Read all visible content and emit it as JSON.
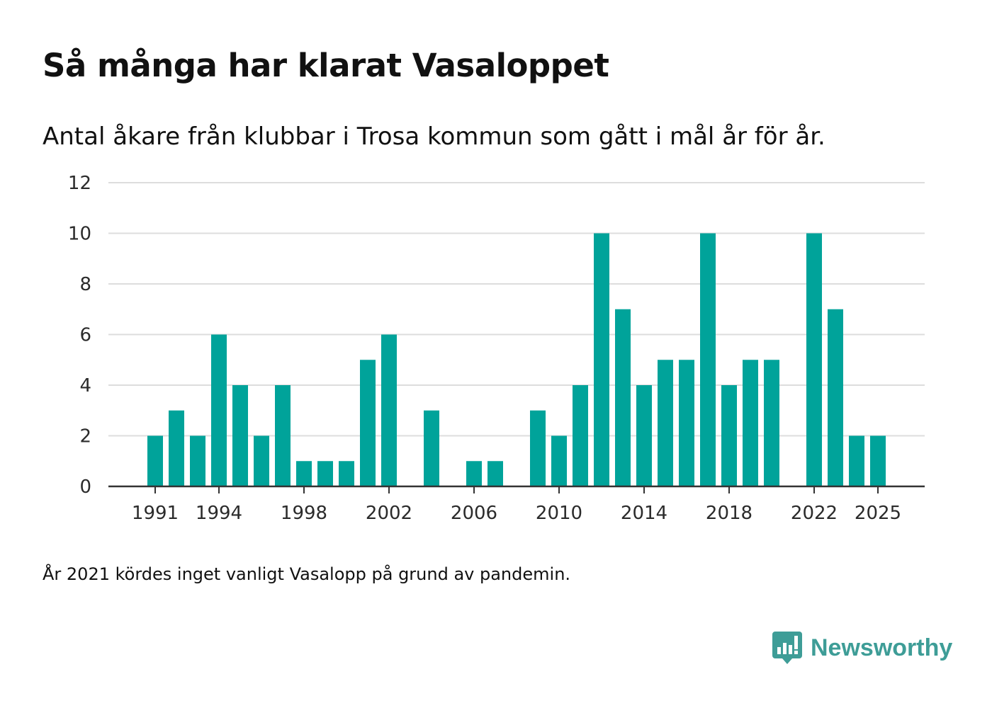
{
  "title": "Så många har klarat Vasaloppet",
  "subtitle": "Antal åkare från klubbar i Trosa kommun som gått i mål år för år.",
  "footnote": "År 2021 kördes inget vanligt Vasalopp på grund av pandemin.",
  "brand": {
    "name": "Newsworthy",
    "icon": "newsworthy-logo-icon",
    "color": "#3e9d97"
  },
  "colors": {
    "bar": "#00a39a",
    "grid": "#dddddd",
    "axis": "#333333"
  },
  "chart_data": {
    "type": "bar",
    "title": "Så många har klarat Vasaloppet",
    "subtitle": "Antal åkare från klubbar i Trosa kommun som gått i mål år för år.",
    "xlabel": "",
    "ylabel": "",
    "categories": [
      1990,
      1991,
      1992,
      1993,
      1994,
      1995,
      1996,
      1997,
      1998,
      1999,
      2000,
      2001,
      2002,
      2003,
      2004,
      2005,
      2006,
      2007,
      2008,
      2009,
      2010,
      2011,
      2012,
      2013,
      2014,
      2015,
      2016,
      2017,
      2018,
      2019,
      2020,
      2021,
      2022,
      2023,
      2024,
      2025,
      2026
    ],
    "values": [
      0,
      2,
      3,
      2,
      6,
      4,
      2,
      4,
      1,
      1,
      1,
      5,
      6,
      0,
      3,
      0,
      1,
      1,
      0,
      3,
      2,
      4,
      10,
      7,
      4,
      5,
      5,
      10,
      4,
      5,
      5,
      0,
      10,
      7,
      2,
      2,
      0
    ],
    "xticks": [
      1991,
      1994,
      1998,
      2002,
      2006,
      2010,
      2014,
      2018,
      2022,
      2025
    ],
    "yticks": [
      0,
      2,
      4,
      6,
      8,
      10,
      12
    ],
    "ylim": [
      0,
      12
    ],
    "grid": true,
    "legend": "none"
  }
}
